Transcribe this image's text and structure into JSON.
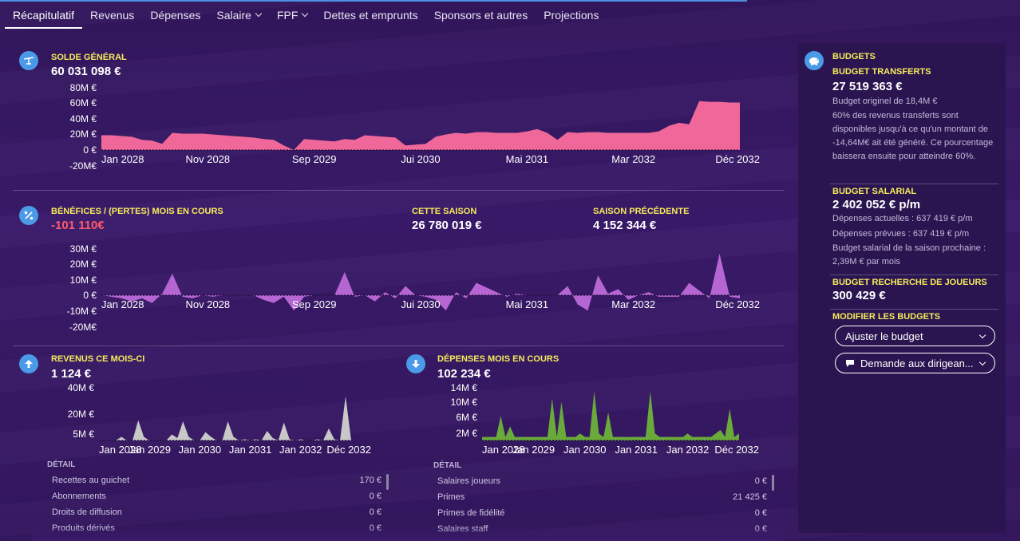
{
  "nav": {
    "tabs": [
      {
        "label": "Récapitulatif",
        "active": true,
        "dropdown": false
      },
      {
        "label": "Revenus",
        "active": false,
        "dropdown": false
      },
      {
        "label": "Dépenses",
        "active": false,
        "dropdown": false
      },
      {
        "label": "Salaire",
        "active": false,
        "dropdown": true
      },
      {
        "label": "FPF",
        "active": false,
        "dropdown": true
      },
      {
        "label": "Dettes et emprunts",
        "active": false,
        "dropdown": false
      },
      {
        "label": "Sponsors et autres",
        "active": false,
        "dropdown": false
      },
      {
        "label": "Projections",
        "active": false,
        "dropdown": false
      }
    ]
  },
  "balance": {
    "title": "SOLDE GÉNÉRAL",
    "value": "60 031 098 €",
    "icon": "scale-icon"
  },
  "profit": {
    "title": "BÉNÉFICES / (PERTES) MOIS EN COURS",
    "value": "-101 110€",
    "this_season_label": "CETTE SAISON",
    "this_season_value": "26 780 019 €",
    "prev_season_label": "SAISON PRÉCÉDENTE",
    "prev_season_value": "4 152 344 €",
    "icon": "percent-icon"
  },
  "income": {
    "title": "REVENUS CE MOIS-CI",
    "value": "1 124 €",
    "icon": "arrow-up-icon",
    "detail_label": "DÉTAIL",
    "rows": [
      {
        "label": "Recettes au guichet",
        "value": "170 €"
      },
      {
        "label": "Abonnements",
        "value": "0 €"
      },
      {
        "label": "Droits de diffusion",
        "value": "0 €"
      },
      {
        "label": "Produits dérivés",
        "value": "0 €"
      }
    ]
  },
  "expenses": {
    "title": "DÉPENSES MOIS EN COURS",
    "value": "102 234 €",
    "icon": "arrow-down-icon",
    "detail_label": "DÉTAIL",
    "rows": [
      {
        "label": "Salaires joueurs",
        "value": "0 €"
      },
      {
        "label": "Primes",
        "value": "21 425 €"
      },
      {
        "label": "Primes de fidélité",
        "value": "0 €"
      },
      {
        "label": "Salaires staff",
        "value": "0 €"
      }
    ]
  },
  "budgets": {
    "title": "BUDGETS",
    "icon": "piggy-bank-icon",
    "transfer_title": "BUDGET TRANSFERTS",
    "transfer_value": "27 519 363 €",
    "transfer_original": "Budget originel de 18,4M €",
    "transfer_note": "60% des revenus transferts sont disponibles jusqu'à ce qu'un montant de -14,64M€ ait été généré. Ce pourcentage baissera ensuite pour atteindre 60%.",
    "wage_title": "BUDGET SALARIAL",
    "wage_value": "2 402 052 € p/m",
    "wage_current": "Dépenses actuelles : 637 419 € p/m",
    "wage_planned": "Dépenses prévues : 637 419 € p/m",
    "wage_next": "Budget salarial de la saison prochaine : 2,39M € par mois",
    "scouting_title": "BUDGET RECHERCHE DE JOUEURS",
    "scouting_value": "300 429 €",
    "modify_title": "MODIFIER LES BUDGETS",
    "adjust_button": "Ajuster le budget",
    "request_button": "Demande aux dirigean..."
  },
  "chart_data": [
    {
      "type": "area",
      "name": "balance",
      "color": "#f0689a",
      "xticks": [
        "Jan 2028",
        "Nov 2028",
        "Sep 2029",
        "Jui 2030",
        "Mai 2031",
        "Mar 2032",
        "Déc 2032"
      ],
      "yticks": [
        "80M €",
        "60M €",
        "40M €",
        "20M €",
        "0 €",
        "-20M€"
      ],
      "ylim": [
        -20,
        80
      ],
      "values": [
        19,
        19,
        18,
        17,
        13,
        12,
        8,
        22,
        21,
        21,
        21,
        20,
        19,
        18,
        17,
        16,
        14,
        13,
        6,
        0,
        14,
        13,
        12,
        11,
        14,
        13,
        19,
        18,
        17,
        16,
        6,
        7,
        8,
        17,
        20,
        22,
        21,
        23,
        23,
        22,
        22,
        22,
        24,
        27,
        22,
        13,
        23,
        22,
        23,
        23,
        22,
        22,
        22,
        22,
        22,
        24,
        31,
        35,
        33,
        63,
        62,
        62,
        61,
        61
      ]
    },
    {
      "type": "area",
      "name": "profit",
      "color": "#b666d2",
      "xticks": [
        "Jan 2028",
        "Nov 2028",
        "Sep 2029",
        "Jui 2030",
        "Mai 2031",
        "Mar 2032",
        "Déc 2032"
      ],
      "yticks": [
        "30M €",
        "20M €",
        "10M €",
        "0 €",
        "-10M €",
        "-20M€"
      ],
      "ylim": [
        -20,
        30
      ],
      "values": [
        0,
        -1,
        -2,
        -4,
        -2,
        -5,
        1,
        14,
        -1,
        -2,
        0,
        -1,
        0,
        0,
        0,
        0,
        -3,
        -5,
        -1,
        -10,
        -1,
        0,
        0,
        0,
        15,
        -1,
        0,
        -4,
        2,
        -2,
        6,
        0,
        -1,
        -3,
        -10,
        2,
        -2,
        8,
        5,
        2,
        -1,
        1,
        0,
        0,
        0,
        0,
        6,
        -6,
        -10,
        13,
        1,
        4,
        -3,
        0,
        2,
        -1,
        -1,
        -1,
        8,
        3,
        -2,
        27,
        -1,
        -2
      ]
    },
    {
      "type": "area",
      "name": "income",
      "color": "#c8c8c8",
      "xticks": [
        "Jan 2028",
        "Jan 2029",
        "Jan 2030",
        "Jan 2031",
        "Jan 2032",
        "Déc 2032"
      ],
      "yticks": [
        "40M €",
        "20M €",
        "5M €"
      ],
      "ylim": [
        0,
        44
      ],
      "values": [
        0,
        0,
        0,
        0,
        3,
        0,
        0,
        17,
        3,
        0,
        0,
        0,
        0,
        5,
        2,
        16,
        3,
        0,
        0,
        7,
        3,
        0,
        0,
        16,
        3,
        0,
        1,
        0,
        1,
        0,
        8,
        2,
        0,
        15,
        1,
        0,
        1,
        0,
        0,
        1,
        0,
        10,
        1,
        0,
        37,
        0
      ]
    },
    {
      "type": "area",
      "name": "expenses",
      "color": "#6aaa3a",
      "xticks": [
        "Jan 2028",
        "Jan 2029",
        "Jan 2030",
        "Jan 2031",
        "Jan 2032",
        "Déc 2032"
      ],
      "yticks": [
        "14M €",
        "10M €",
        "6M €",
        "2M €"
      ],
      "ylim": [
        0,
        15
      ],
      "values": [
        1,
        1,
        1,
        1,
        7,
        1,
        4,
        1,
        1,
        1,
        1,
        1,
        1,
        1,
        1,
        12,
        1,
        11,
        1,
        1,
        1,
        2,
        1,
        1,
        14,
        2,
        1,
        8,
        1,
        1,
        1,
        1,
        1,
        1,
        1,
        1,
        14,
        2,
        1,
        1,
        1,
        1,
        1,
        1,
        2,
        1,
        1,
        1,
        1,
        1,
        2,
        3,
        1,
        9,
        1,
        2
      ]
    }
  ]
}
